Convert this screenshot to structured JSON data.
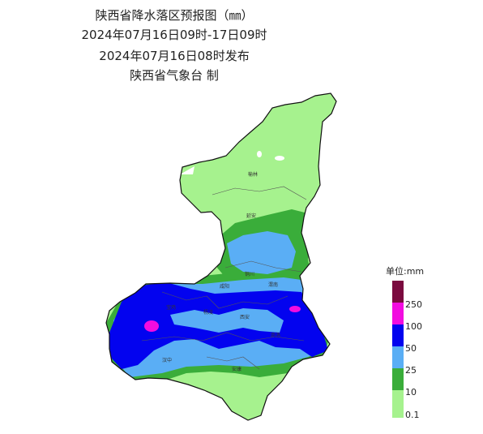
{
  "header": {
    "line1": "陕西省降水落区预报图（㎜）",
    "line2": "2024年07月16日09时-17日09时",
    "line3": "2024年07月16日08时发布",
    "line4": "陕西省气象台 制"
  },
  "map": {
    "cities": [
      "榆林",
      "延安",
      "铜川",
      "渭南",
      "咸阳",
      "宝鸡",
      "杨凌",
      "西安",
      "商洛",
      "汉中",
      "安康"
    ]
  },
  "legend": {
    "title": "单位:mm",
    "levels": [
      {
        "label": "250",
        "color": "#7b0a3f"
      },
      {
        "label": "100",
        "color": "#f20ce0"
      },
      {
        "label": "50",
        "color": "#0303ef"
      },
      {
        "label": "25",
        "color": "#5aaef5"
      },
      {
        "label": "10",
        "color": "#3aad3a"
      },
      {
        "label": "0.1",
        "color": "#a6f28e"
      }
    ]
  }
}
